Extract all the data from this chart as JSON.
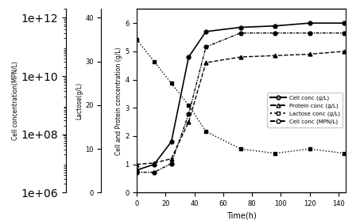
{
  "time": [
    0,
    12,
    24,
    36,
    48,
    72,
    96,
    120,
    144
  ],
  "cell_conc_gL": [
    0.8,
    1.0,
    1.8,
    4.8,
    5.7,
    5.85,
    5.9,
    6.0,
    6.0
  ],
  "protein_conc_gL": [
    1.0,
    1.05,
    1.2,
    2.5,
    4.6,
    4.8,
    4.85,
    4.9,
    5.0
  ],
  "lactose_conc_gL": [
    35,
    30,
    25,
    20,
    14,
    10,
    9,
    10,
    9
  ],
  "cell_conc_mpn": [
    5000000.0,
    5000000.0,
    10000000.0,
    500000000.0,
    100000000000.0,
    300000000000.0,
    300000000000.0,
    300000000000.0,
    300000000000.0
  ],
  "legend_labels": [
    "Cell conc (g/L)",
    "Protein conc (g/L)",
    "Lactose conc (g/L)",
    "Cell conc (MPN/L)"
  ],
  "xlabel": "Time(h)",
  "ylabel_mpn": "Cell concentration(MPN/L)",
  "ylabel_lactose": "Lactose(g/L)",
  "ylabel_cp": "Cell and Protein concentration (g/L)",
  "xlim": [
    0,
    145
  ],
  "xticks": [
    0,
    20,
    40,
    60,
    80,
    100,
    120,
    140
  ],
  "ylim_cp": [
    0,
    6.5
  ],
  "yticks_cp": [
    0,
    1,
    2,
    3,
    4,
    5,
    6
  ],
  "ylim_lactose": [
    0,
    42
  ],
  "yticks_lactose": [
    0,
    10,
    20,
    30,
    40
  ],
  "ylim_mpn_log": [
    1000000.0,
    2000000000000.0
  ],
  "yticks_mpn": [
    1000000.0,
    100000000.0,
    10000000000.0,
    1000000000000.0
  ],
  "ytick_mpn_labels": [
    "1e+06",
    "1e+08",
    "1e+10",
    "1e+12"
  ]
}
